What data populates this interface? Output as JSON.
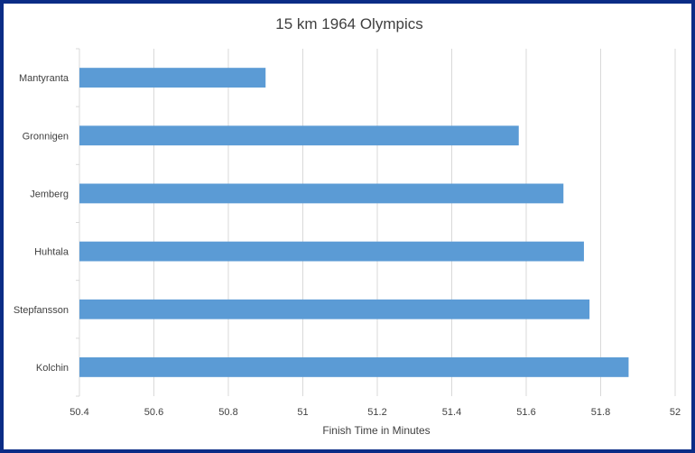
{
  "chart_data": {
    "type": "bar",
    "orientation": "horizontal",
    "title": "15 km 1964 Olympics",
    "xlabel": "Finish Time in Minutes",
    "ylabel": "",
    "categories": [
      "Mantyranta",
      "Gronnigen",
      "Jemberg",
      "Huhtala",
      "Stepfansson",
      "Kolchin"
    ],
    "values": [
      50.9,
      51.58,
      51.7,
      51.755,
      51.77,
      51.875
    ],
    "xlim": [
      50.4,
      52
    ],
    "xticks": [
      "50.4",
      "50.6",
      "50.8",
      "51",
      "51.2",
      "51.4",
      "51.6",
      "51.8",
      "52"
    ],
    "grid": "vertical",
    "legend": "none",
    "bar_color": "#5b9bd5",
    "grid_color": "#d9d9d9",
    "text_color": "#404040"
  }
}
